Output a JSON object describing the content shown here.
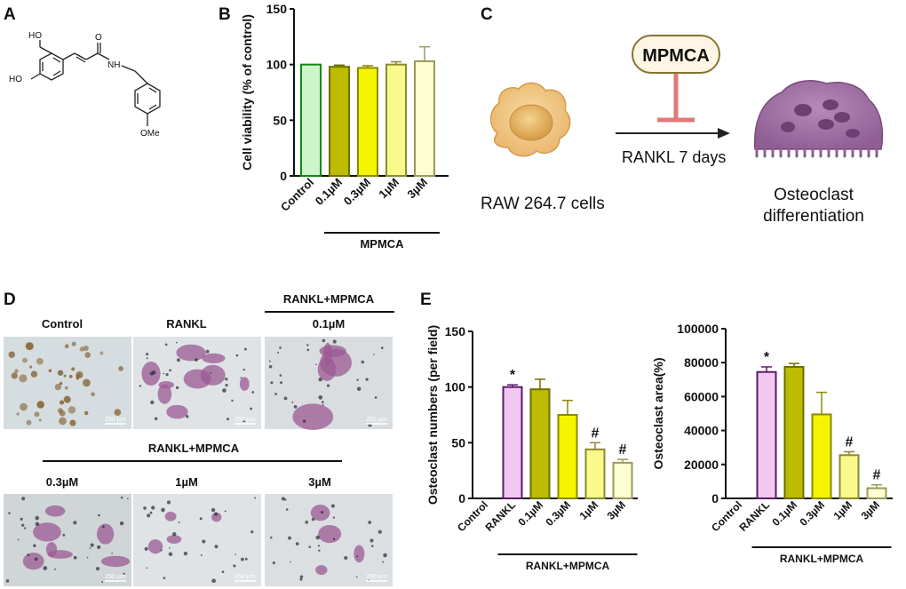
{
  "panels": {
    "a": "A",
    "b": "B",
    "c": "C",
    "d": "D",
    "e": "E"
  },
  "molecule": {
    "oh1": "HO",
    "oh2": "HO",
    "o": "O",
    "nh": "NH",
    "ome": "OMe"
  },
  "scheme": {
    "inhibitor": "MPMCA",
    "cell_label": "RAW 264.7 cells",
    "arrow_label": "RANKL 7 days",
    "result_line1": "Osteoclast",
    "result_line2": "differentiation"
  },
  "micro": {
    "labels": [
      "Control",
      "RANKL",
      "0.1µM",
      "0.3µM",
      "1µM",
      "3µM"
    ],
    "group_top": "RANKL+MPMCA",
    "group_mid": "RANKL+MPMCA",
    "scale_bar": "250 µm"
  },
  "chart_data": [
    {
      "type": "bar",
      "panel": "B",
      "ylabel": "Cell viability (% of control)",
      "ylim": [
        0,
        150
      ],
      "yticks": [
        0,
        50,
        100,
        150
      ],
      "categories": [
        "Control",
        "0.1µM",
        "0.3µM",
        "1µM",
        "3µM"
      ],
      "values": [
        100,
        98,
        97,
        100,
        103
      ],
      "errors": [
        0,
        1.5,
        2,
        2.5,
        13
      ],
      "significance": [
        "",
        "",
        "",
        "",
        ""
      ],
      "group_label": "MPMCA",
      "group_start": 1,
      "colors": [
        "#ccf5cc",
        "#bcbc00",
        "#f5f500",
        "#f9f98c",
        "#fdfdd2"
      ],
      "edge_colors": [
        "#118811",
        "#6e6e00",
        "#8a8a00",
        "#8a8a30",
        "#9a9a5a"
      ]
    },
    {
      "type": "bar",
      "panel": "E",
      "ylabel": "Osteoclast numbers (per field)",
      "ylim": [
        0,
        150
      ],
      "yticks": [
        0,
        50,
        100,
        150
      ],
      "categories": [
        "Control",
        "RANKL",
        "0.1µM",
        "0.3µM",
        "1µM",
        "3µM"
      ],
      "values": [
        0,
        100,
        98,
        75,
        44,
        32
      ],
      "errors": [
        0,
        2,
        9,
        13,
        6,
        3
      ],
      "significance": [
        "",
        "*",
        "",
        "",
        "#",
        "#"
      ],
      "group_label": "RANKL+MPMCA",
      "group_start": 1,
      "colors": [
        "#ffffff",
        "#f0c8f0",
        "#bcbc00",
        "#f5f500",
        "#f9f98c",
        "#fdfdd2"
      ],
      "edge_colors": [
        "#444444",
        "#5a1a6a",
        "#6e6e00",
        "#8a8a00",
        "#8a8a30",
        "#9a9a5a"
      ]
    },
    {
      "type": "bar",
      "panel": "E",
      "ylabel": "Osteoclast area(%)",
      "ylim": [
        0,
        100000
      ],
      "yticks": [
        0,
        20000,
        40000,
        60000,
        80000,
        100000
      ],
      "categories": [
        "Control",
        "RANKL",
        "0.1µM",
        "0.3µM",
        "1µM",
        "3µM"
      ],
      "values": [
        0,
        74500,
        77500,
        49500,
        25500,
        6000
      ],
      "errors": [
        0,
        3000,
        2000,
        13000,
        2000,
        2000
      ],
      "significance": [
        "",
        "*",
        "",
        "",
        "#",
        "#"
      ],
      "group_label": "RANKL+MPMCA",
      "group_start": 1,
      "colors": [
        "#ffffff",
        "#f0c8f0",
        "#bcbc00",
        "#f5f500",
        "#f9f98c",
        "#fdfdd2"
      ],
      "edge_colors": [
        "#444444",
        "#5a1a6a",
        "#6e6e00",
        "#8a8a00",
        "#8a8a30",
        "#9a9a5a"
      ]
    }
  ]
}
